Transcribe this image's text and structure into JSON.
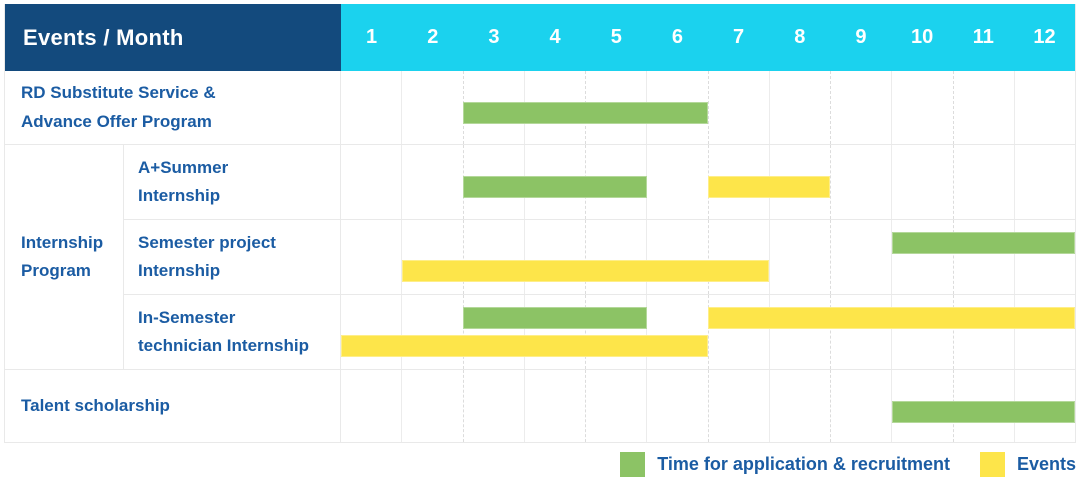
{
  "header": {
    "title": "Events / Month",
    "months": [
      "1",
      "2",
      "3",
      "4",
      "5",
      "6",
      "7",
      "8",
      "9",
      "10",
      "11",
      "12"
    ]
  },
  "group_label": {
    "line1": "Internship",
    "line2": "Program"
  },
  "rows": [
    {
      "id": "rd-substitute",
      "label_line1": "RD Substitute Service &",
      "label_line2": "Advance Offer Program",
      "bars": [
        {
          "color": "green",
          "start_month": 3,
          "end_month": 6,
          "band": "single"
        }
      ]
    },
    {
      "id": "a-plus-summer",
      "label_line1": "A+Summer",
      "label_line2": "Internship",
      "bars": [
        {
          "color": "green",
          "start_month": 3,
          "end_month": 5,
          "band": "single"
        },
        {
          "color": "yellow",
          "start_month": 7,
          "end_month": 8,
          "band": "single"
        }
      ]
    },
    {
      "id": "semester-project",
      "label_line1": "Semester project",
      "label_line2": "Internship",
      "bars": [
        {
          "color": "green",
          "start_month": 10,
          "end_month": 12,
          "band": "upper"
        },
        {
          "color": "yellow",
          "start_month": 2,
          "end_month": 7,
          "band": "lower"
        }
      ]
    },
    {
      "id": "in-semester-technician",
      "label_line1": "In-Semester",
      "label_line2": "technician Internship",
      "bars": [
        {
          "color": "green",
          "start_month": 3,
          "end_month": 5,
          "band": "upper"
        },
        {
          "color": "yellow",
          "start_month": 7,
          "end_month": 12,
          "band": "upper"
        },
        {
          "color": "yellow",
          "start_month": 1,
          "end_month": 6,
          "band": "lower"
        }
      ]
    },
    {
      "id": "talent-scholarship",
      "label_line1": "Talent scholarship",
      "label_line2": "",
      "bars": [
        {
          "color": "green",
          "start_month": 10,
          "end_month": 12,
          "band": "single"
        }
      ]
    }
  ],
  "legend": [
    {
      "color": "green",
      "label": "Time for application & recruitment"
    },
    {
      "color": "yellow",
      "label": "Events"
    }
  ],
  "colors": {
    "header_bg": "#134a7d",
    "months_bg": "#1bd2ee",
    "label_text": "#1b5ca3",
    "green": "#8cc365",
    "yellow": "#fde54a",
    "grid_line": "#e9e9e9"
  },
  "chart_data": {
    "type": "bar",
    "subtype": "gantt",
    "title": "Events / Month",
    "xlabel": "Month",
    "x_ticks": [
      1,
      2,
      3,
      4,
      5,
      6,
      7,
      8,
      9,
      10,
      11,
      12
    ],
    "xlim": [
      1,
      12
    ],
    "grid": true,
    "legend_position": "bottom-right",
    "series_names": [
      "Time for application & recruitment",
      "Events"
    ],
    "tasks": [
      {
        "row": "RD Substitute Service & Advance Offer Program",
        "series": "Time for application & recruitment",
        "start_month": 3,
        "end_month": 6
      },
      {
        "row": "A+Summer Internship",
        "group": "Internship Program",
        "series": "Time for application & recruitment",
        "start_month": 3,
        "end_month": 5
      },
      {
        "row": "A+Summer Internship",
        "group": "Internship Program",
        "series": "Events",
        "start_month": 7,
        "end_month": 8
      },
      {
        "row": "Semester project Internship",
        "group": "Internship Program",
        "series": "Time for application & recruitment",
        "start_month": 10,
        "end_month": 12
      },
      {
        "row": "Semester project Internship",
        "group": "Internship Program",
        "series": "Events",
        "start_month": 2,
        "end_month": 7
      },
      {
        "row": "In-Semester technician Internship",
        "group": "Internship Program",
        "series": "Time for application & recruitment",
        "start_month": 3,
        "end_month": 5
      },
      {
        "row": "In-Semester technician Internship",
        "group": "Internship Program",
        "series": "Events",
        "start_month": 7,
        "end_month": 12
      },
      {
        "row": "In-Semester technician Internship",
        "group": "Internship Program",
        "series": "Events",
        "start_month": 1,
        "end_month": 6
      },
      {
        "row": "Talent scholarship",
        "series": "Time for application & recruitment",
        "start_month": 10,
        "end_month": 12
      }
    ]
  }
}
